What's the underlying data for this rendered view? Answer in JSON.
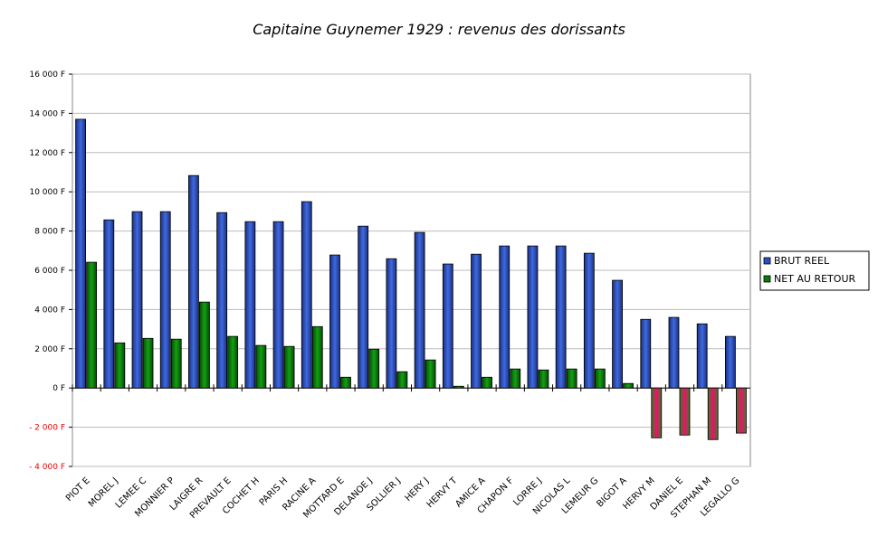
{
  "chart_data": {
    "type": "bar",
    "title": "Capitaine Guynemer 1929 : revenus des dorissants",
    "xlabel": "",
    "ylabel": "",
    "ylim": [
      -4000,
      16000
    ],
    "yticks": [
      -4000,
      -2000,
      0,
      2000,
      4000,
      6000,
      8000,
      10000,
      12000,
      14000,
      16000
    ],
    "ytick_labels": [
      "- 4 000 F",
      "- 2 000 F",
      "0 F",
      "2 000 F",
      "4 000 F",
      "6 000 F",
      "8 000 F",
      "10 000 F",
      "12 000 F",
      "14 000 F",
      "16 000 F"
    ],
    "grid": true,
    "legend_position": "right",
    "categories": [
      "PIOT E",
      "MOREL J",
      "LEMEE C",
      "MONNIER P",
      "LAIGRE R",
      "PREVAULT E",
      "COCHET H",
      "PARIS H",
      "RACINE A",
      "MOTTARD E",
      "DELANOE J",
      "SOLLIER J",
      "HERY J",
      "HERVY T",
      "AMICE A",
      "CHAPON F",
      "LORRE J",
      "NICOLAS L",
      "LEMEUR G",
      "BIGOT A",
      "HERVY M",
      "DANIEL E",
      "STEPHAN M",
      "LEGALLO G"
    ],
    "series": [
      {
        "name": "BRUT REEL",
        "color": "#2b4fc0",
        "values": [
          13700,
          8570,
          8990,
          8990,
          10830,
          8940,
          8480,
          8480,
          9500,
          6780,
          8250,
          6590,
          7930,
          6320,
          6820,
          7240,
          7240,
          7240,
          6870,
          5490,
          3500,
          3600,
          3270,
          2630
        ]
      },
      {
        "name": "NET AU RETOUR",
        "color": "#0a7a0a",
        "negative_color": "#e8206a",
        "values": [
          6410,
          2300,
          2530,
          2490,
          4380,
          2630,
          2170,
          2120,
          3130,
          550,
          1980,
          830,
          1430,
          90,
          550,
          970,
          920,
          970,
          970,
          230,
          -2540,
          -2400,
          -2630,
          -2300
        ]
      }
    ]
  }
}
